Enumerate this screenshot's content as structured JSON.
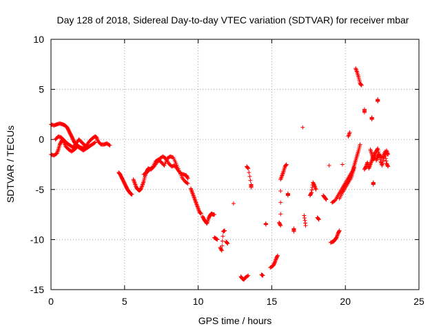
{
  "chart_data": {
    "type": "scatter",
    "title": "Day 128 of 2018, Sidereal Day-to-day VTEC variation (SDTVAR) for receiver mbar",
    "xlabel": "GPS time / hours",
    "ylabel": "SDTVAR / TECUs",
    "xlim": [
      0,
      25
    ],
    "ylim": [
      -15,
      10
    ],
    "grid": true,
    "marker": "plus",
    "color": "#ff0000",
    "xticks": [
      0,
      5,
      10,
      15,
      20,
      25
    ],
    "yticks": [
      -15,
      -10,
      -5,
      0,
      5,
      10
    ],
    "xtick_labels": [
      "0",
      "5",
      "10",
      "15",
      "20",
      "25"
    ],
    "ytick_labels": [
      "-15",
      "-10",
      "-5",
      "0",
      "5",
      "10"
    ],
    "series": [
      {
        "name": "SDTVAR",
        "segments": [
          [
            [
              0.0,
              1.5
            ],
            [
              0.2,
              1.4
            ],
            [
              0.4,
              1.5
            ],
            [
              0.6,
              1.6
            ],
            [
              0.8,
              1.5
            ],
            [
              0.95,
              1.4
            ],
            [
              1.1,
              1.2
            ],
            [
              1.2,
              0.9
            ],
            [
              1.3,
              0.6
            ],
            [
              1.4,
              0.3
            ],
            [
              1.5,
              0.0
            ],
            [
              1.6,
              -0.3
            ],
            [
              1.7,
              -0.5
            ],
            [
              1.8,
              -0.6
            ],
            [
              2.0,
              -0.8
            ],
            [
              2.2,
              -0.9
            ],
            [
              2.4,
              -0.6
            ],
            [
              2.6,
              -0.2
            ],
            [
              2.8,
              0.1
            ],
            [
              3.0,
              0.3
            ],
            [
              3.1,
              0.2
            ],
            [
              3.2,
              -0.2
            ],
            [
              3.4,
              -0.5
            ],
            [
              3.6,
              -0.5
            ],
            [
              3.8,
              -0.4
            ],
            [
              4.0,
              -0.6
            ]
          ],
          [
            [
              0.0,
              -1.5
            ],
            [
              0.2,
              -1.6
            ],
            [
              0.4,
              -1.4
            ],
            [
              0.5,
              -1.0
            ],
            [
              0.6,
              -0.5
            ],
            [
              0.7,
              -0.2
            ],
            [
              0.8,
              0.0
            ],
            [
              0.9,
              -0.3
            ],
            [
              1.0,
              -0.7
            ],
            [
              1.2,
              -1.0
            ],
            [
              1.4,
              -1.2
            ],
            [
              1.6,
              -1.0
            ],
            [
              1.8,
              -0.7
            ],
            [
              2.0,
              -0.9
            ],
            [
              2.2,
              -1.1
            ],
            [
              2.4,
              -0.9
            ],
            [
              2.6,
              -0.7
            ],
            [
              2.8,
              -0.5
            ],
            [
              3.0,
              -0.3
            ]
          ],
          [
            [
              0.3,
              0.0
            ],
            [
              0.5,
              0.3
            ],
            [
              0.7,
              0.2
            ],
            [
              0.9,
              -0.1
            ],
            [
              1.1,
              -0.4
            ],
            [
              1.3,
              -0.6
            ],
            [
              1.5,
              -0.8
            ],
            [
              1.7,
              -0.4
            ],
            [
              1.9,
              0.0
            ],
            [
              2.1,
              -0.3
            ],
            [
              2.3,
              -0.6
            ],
            [
              2.5,
              -0.8
            ]
          ],
          [
            [
              4.6,
              -3.3
            ],
            [
              4.7,
              -3.5
            ],
            [
              4.8,
              -3.8
            ],
            [
              4.9,
              -4.1
            ],
            [
              5.0,
              -4.4
            ],
            [
              5.1,
              -4.7
            ],
            [
              5.2,
              -5.0
            ],
            [
              5.3,
              -5.2
            ],
            [
              5.4,
              -5.4
            ],
            [
              5.5,
              -5.5
            ]
          ],
          [
            [
              5.6,
              -4.0
            ],
            [
              5.7,
              -4.4
            ],
            [
              5.8,
              -4.8
            ],
            [
              5.9,
              -5.0
            ],
            [
              6.0,
              -5.1
            ],
            [
              6.1,
              -5.0
            ],
            [
              6.2,
              -4.6
            ],
            [
              6.3,
              -4.2
            ],
            [
              6.4,
              -3.6
            ],
            [
              6.5,
              -3.2
            ],
            [
              6.6,
              -2.9
            ],
            [
              6.8,
              -3.0
            ],
            [
              7.0,
              -2.7
            ],
            [
              7.2,
              -2.3
            ],
            [
              7.4,
              -1.9
            ],
            [
              7.6,
              -1.7
            ],
            [
              7.8,
              -1.9
            ],
            [
              8.0,
              -2.4
            ],
            [
              8.2,
              -2.7
            ],
            [
              8.4,
              -2.6
            ],
            [
              8.6,
              -3.0
            ],
            [
              8.8,
              -3.4
            ],
            [
              9.0,
              -3.5
            ],
            [
              9.2,
              -3.6
            ],
            [
              9.3,
              -3.9
            ]
          ],
          [
            [
              6.3,
              -3.5
            ],
            [
              6.5,
              -3.3
            ],
            [
              6.7,
              -3.0
            ],
            [
              6.9,
              -2.8
            ],
            [
              7.1,
              -2.2
            ],
            [
              7.3,
              -2.0
            ],
            [
              7.5,
              -2.3
            ],
            [
              7.7,
              -2.6
            ],
            [
              7.9,
              -1.9
            ],
            [
              8.1,
              -1.7
            ],
            [
              8.3,
              -1.8
            ],
            [
              8.5,
              -2.4
            ],
            [
              8.7,
              -3.1
            ],
            [
              8.9,
              -3.8
            ],
            [
              9.1,
              -4.2
            ],
            [
              9.3,
              -4.4
            ]
          ],
          [
            [
              9.5,
              -4.9
            ],
            [
              9.6,
              -5.3
            ],
            [
              9.7,
              -5.7
            ],
            [
              9.8,
              -6.1
            ],
            [
              9.9,
              -6.5
            ],
            [
              10.0,
              -6.9
            ],
            [
              10.1,
              -7.3
            ],
            [
              10.2,
              -7.4
            ]
          ],
          [
            [
              10.3,
              -7.7
            ],
            [
              10.4,
              -8.0
            ],
            [
              10.5,
              -8.2
            ],
            [
              10.6,
              -8.4
            ],
            [
              10.7,
              -7.9
            ],
            [
              10.8,
              -7.6
            ],
            [
              10.9,
              -7.4
            ],
            [
              11.0,
              -7.5
            ],
            [
              11.1,
              -7.5
            ]
          ],
          [
            [
              11.1,
              -9.8
            ],
            [
              11.2,
              -9.9
            ],
            [
              11.3,
              -10.0
            ]
          ],
          [
            [
              11.5,
              -10.8
            ],
            [
              11.6,
              -11.1
            ],
            [
              11.7,
              -9.2
            ],
            [
              11.8,
              -9.1
            ]
          ],
          [
            [
              11.9,
              -10.2
            ],
            [
              12.0,
              -10.4
            ]
          ],
          [
            [
              12.4,
              -6.4
            ]
          ],
          [
            [
              12.9,
              -13.7
            ],
            [
              13.0,
              -13.9
            ],
            [
              13.1,
              -14.0
            ],
            [
              13.2,
              -13.8
            ],
            [
              13.4,
              -13.6
            ]
          ],
          [
            [
              13.3,
              -2.7
            ],
            [
              13.4,
              -2.9
            ],
            [
              13.6,
              -4.5
            ],
            [
              13.6,
              -4.8
            ]
          ],
          [
            [
              14.3,
              -13.5
            ],
            [
              14.4,
              -13.6
            ]
          ],
          [
            [
              14.6,
              -8.4
            ],
            [
              14.6,
              -8.5
            ]
          ],
          [
            [
              14.9,
              -12.8
            ],
            [
              15.1,
              -12.6
            ],
            [
              15.2,
              -12.3
            ],
            [
              15.3,
              -11.9
            ],
            [
              15.4,
              -11.6
            ]
          ],
          [
            [
              15.5,
              -8.3
            ],
            [
              15.6,
              -8.6
            ],
            [
              15.6,
              -4.0
            ],
            [
              15.7,
              -3.6
            ],
            [
              15.8,
              -3.2
            ],
            [
              15.9,
              -2.7
            ],
            [
              16.0,
              -2.5
            ]
          ],
          [
            [
              16.1,
              -5.4
            ],
            [
              16.1,
              -5.6
            ]
          ],
          [
            [
              16.5,
              -8.9
            ],
            [
              16.5,
              -9.2
            ]
          ],
          [
            [
              17.1,
              1.2
            ]
          ],
          [
            [
              17.2,
              -7.6
            ],
            [
              17.3,
              -8.6
            ]
          ],
          [
            [
              17.6,
              -5.6
            ],
            [
              17.7,
              -5.3
            ],
            [
              17.8,
              -4.3
            ],
            [
              17.9,
              -4.6
            ],
            [
              18.0,
              -5.0
            ]
          ],
          [
            [
              18.1,
              -7.8
            ],
            [
              18.2,
              -8.0
            ]
          ],
          [
            [
              18.5,
              -5.6
            ],
            [
              18.6,
              -5.8
            ],
            [
              18.7,
              -6.0
            ]
          ],
          [
            [
              18.9,
              -2.6
            ]
          ],
          [
            [
              19.0,
              -10.3
            ],
            [
              19.2,
              -10.2
            ],
            [
              19.3,
              -10.0
            ],
            [
              19.4,
              -9.8
            ],
            [
              19.5,
              -9.4
            ],
            [
              19.6,
              -9.1
            ]
          ],
          [
            [
              19.1,
              -6.3
            ],
            [
              19.3,
              -6.1
            ],
            [
              19.5,
              -5.6
            ],
            [
              19.7,
              -5.1
            ],
            [
              19.9,
              -4.6
            ],
            [
              20.1,
              -4.1
            ],
            [
              20.3,
              -3.6
            ],
            [
              20.5,
              -3.1
            ],
            [
              20.6,
              -2.6
            ],
            [
              20.7,
              -2.1
            ],
            [
              20.8,
              -1.6
            ],
            [
              20.9,
              -1.1
            ],
            [
              21.0,
              -0.5
            ]
          ],
          [
            [
              19.6,
              -5.9
            ],
            [
              19.8,
              -5.3
            ],
            [
              20.0,
              -4.8
            ],
            [
              20.2,
              -4.3
            ],
            [
              20.4,
              -3.8
            ],
            [
              20.5,
              -3.3
            ],
            [
              20.6,
              -2.8
            ]
          ],
          [
            [
              19.8,
              -2.5
            ]
          ],
          [
            [
              20.2,
              0.3
            ],
            [
              20.3,
              0.7
            ]
          ],
          [
            [
              20.7,
              7.1
            ],
            [
              20.8,
              6.7
            ],
            [
              20.9,
              6.2
            ],
            [
              21.0,
              5.6
            ],
            [
              21.1,
              5.4
            ]
          ],
          [
            [
              21.3,
              -3.0
            ],
            [
              21.4,
              -2.7
            ],
            [
              21.5,
              -2.3
            ],
            [
              21.6,
              -2.9
            ],
            [
              21.7,
              -2.5
            ],
            [
              21.8,
              -2.1
            ],
            [
              21.9,
              -1.7
            ],
            [
              22.0,
              -1.3
            ]
          ],
          [
            [
              21.3,
              3.0
            ],
            [
              21.3,
              2.7
            ]
          ],
          [
            [
              21.8,
              2.2
            ],
            [
              21.8,
              2.0
            ]
          ],
          [
            [
              21.9,
              -4.3
            ],
            [
              21.9,
              -4.5
            ]
          ],
          [
            [
              22.1,
              -2.1
            ],
            [
              22.2,
              -1.7
            ],
            [
              22.3,
              -1.5
            ],
            [
              22.4,
              -2.2
            ],
            [
              22.5,
              -2.6
            ],
            [
              22.6,
              -1.9
            ],
            [
              22.7,
              -1.4
            ],
            [
              22.8,
              -2.4
            ],
            [
              22.9,
              -2.7
            ]
          ],
          [
            [
              22.2,
              4.0
            ],
            [
              22.2,
              3.8
            ]
          ],
          [
            [
              21.7,
              -1.0
            ],
            [
              21.8,
              -1.5
            ],
            [
              21.9,
              -2.0
            ],
            [
              22.0,
              -1.8
            ],
            [
              22.1,
              -1.2
            ],
            [
              22.2,
              -0.9
            ],
            [
              22.3,
              -1.6
            ],
            [
              22.5,
              -1.8
            ],
            [
              22.7,
              -1.2
            ],
            [
              22.9,
              -1.5
            ],
            [
              22.8,
              -1.1
            ]
          ]
        ]
      }
    ]
  }
}
